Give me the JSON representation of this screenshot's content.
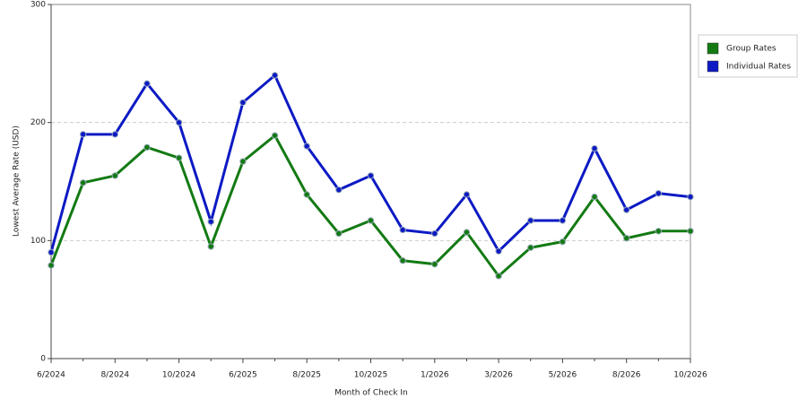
{
  "chart_data": {
    "type": "line",
    "x_label": "Month of Check In",
    "y_label": "Lowest Average Rate (USD)",
    "categories": [
      "6/2024",
      null,
      "8/2024",
      null,
      "10/2024",
      null,
      "6/2025",
      null,
      "8/2025",
      null,
      "10/2025",
      null,
      "1/2026",
      null,
      "3/2026",
      null,
      "5/2026",
      null,
      "8/2026",
      null,
      "10/2026"
    ],
    "series": [
      {
        "name": "Group Rates",
        "color": "#137a13",
        "values": [
          79,
          149,
          155,
          179,
          170,
          95,
          167,
          189,
          139,
          106,
          117,
          83,
          80,
          107,
          70,
          94,
          99,
          137,
          102,
          108,
          108
        ]
      },
      {
        "name": "Individual Rates",
        "color": "#0d1ac4",
        "values": [
          90,
          190,
          190,
          233,
          200,
          116,
          217,
          240,
          180,
          143,
          155,
          109,
          106,
          139,
          91,
          117,
          117,
          178,
          126,
          140,
          137
        ]
      }
    ],
    "ylim": [
      0,
      300
    ],
    "yticks": [
      0,
      100,
      200,
      300
    ],
    "grid": true,
    "legend": "right"
  }
}
